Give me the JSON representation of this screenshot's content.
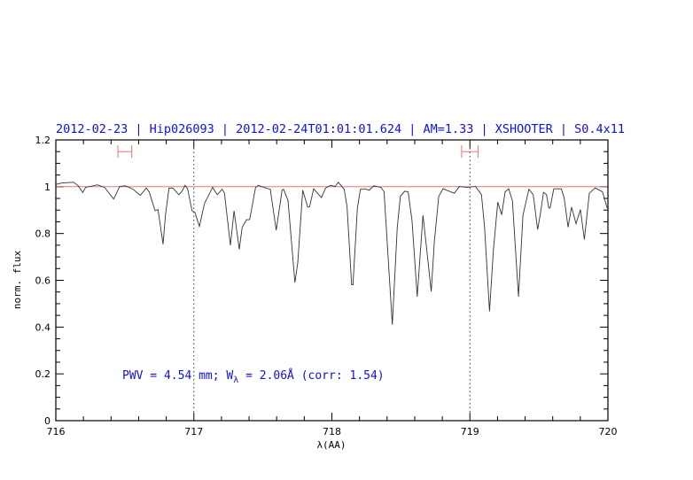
{
  "chart_data": {
    "type": "line",
    "title": "2012-02-23 | Hip026093 | 2012-02-24T01:01:01.624 | AM=1.33 | XSHOOTER | S0.4x11",
    "xlabel": "λ(AA)",
    "ylabel": "norm. flux",
    "xlim": [
      716,
      720
    ],
    "ylim": [
      0,
      1.2
    ],
    "xticks": [
      "716",
      "717",
      "718",
      "719",
      "720"
    ],
    "yticks": [
      "0",
      "0.2",
      "0.4",
      "0.6",
      "0.8",
      "1",
      "1.2"
    ],
    "x_minor_step": 0.2,
    "y_minor_step": 0.05,
    "reference_line": 1.0,
    "dotted_vlines": [
      717,
      719
    ],
    "error_bars": [
      {
        "x_from": 716.45,
        "x_to": 716.55,
        "y": 1.15
      },
      {
        "x_from": 718.94,
        "x_to": 719.06,
        "y": 1.15
      }
    ],
    "annotation": {
      "prefix": "PWV = 4.54 mm; W",
      "sub": "λ",
      "suffix": " = 2.06Å (corr: 1.54)"
    },
    "colors": {
      "spectrum": "#333333",
      "reference": "#e06060",
      "errorbar": "#f07070",
      "text": "#1010e0"
    },
    "series": [
      {
        "name": "spectrum",
        "x": [
          716.002,
          716.045,
          716.13,
          716.162,
          716.195,
          716.216,
          716.302,
          716.353,
          716.419,
          716.462,
          716.505,
          716.559,
          716.612,
          716.655,
          716.676,
          716.719,
          716.74,
          716.777,
          716.794,
          716.82,
          716.848,
          716.891,
          716.912,
          716.937,
          716.955,
          716.987,
          717.008,
          717.04,
          717.077,
          717.093,
          717.136,
          717.169,
          717.205,
          717.222,
          717.265,
          717.291,
          717.329,
          717.35,
          717.382,
          717.404,
          717.447,
          717.468,
          717.522,
          717.554,
          717.597,
          717.639,
          717.65,
          717.682,
          717.732,
          717.753,
          717.789,
          717.825,
          717.838,
          717.868,
          717.924,
          717.954,
          717.992,
          718.024,
          718.046,
          718.089,
          718.11,
          718.143,
          718.153,
          718.185,
          718.207,
          718.249,
          718.271,
          718.303,
          718.356,
          718.378,
          718.438,
          718.474,
          718.496,
          718.528,
          718.553,
          718.581,
          718.618,
          718.66,
          718.688,
          718.72,
          718.742,
          718.774,
          718.806,
          718.887,
          718.923,
          718.977,
          719.041,
          719.084,
          719.106,
          719.142,
          719.17,
          719.202,
          719.23,
          719.255,
          719.281,
          719.308,
          719.352,
          719.384,
          719.427,
          719.459,
          719.491,
          719.512,
          719.533,
          719.555,
          719.572,
          719.581,
          719.608,
          719.662,
          719.683,
          719.711,
          719.737,
          719.769,
          719.801,
          719.829,
          719.865,
          719.908,
          719.961,
          719.994
        ],
        "y": [
          1.01,
          1.016,
          1.019,
          1.004,
          0.975,
          0.997,
          1.008,
          0.997,
          0.947,
          1.001,
          1.004,
          0.989,
          0.963,
          0.994,
          0.978,
          0.897,
          0.903,
          0.754,
          0.878,
          0.994,
          0.994,
          0.966,
          0.978,
          1.006,
          0.991,
          0.897,
          0.89,
          0.83,
          0.928,
          0.947,
          0.997,
          0.966,
          0.989,
          0.972,
          0.749,
          0.897,
          0.732,
          0.827,
          0.859,
          0.859,
          0.997,
          1.006,
          0.994,
          0.989,
          0.814,
          0.985,
          0.989,
          0.941,
          0.59,
          0.675,
          0.985,
          0.913,
          0.913,
          0.991,
          0.953,
          0.994,
          1.006,
          1.001,
          1.019,
          0.989,
          0.916,
          0.581,
          0.581,
          0.909,
          0.989,
          0.989,
          0.985,
          1.004,
          0.997,
          0.978,
          0.41,
          0.827,
          0.959,
          0.981,
          0.978,
          0.852,
          0.53,
          0.878,
          0.726,
          0.552,
          0.764,
          0.959,
          0.991,
          0.972,
          1.001,
          0.997,
          1.001,
          0.966,
          0.827,
          0.467,
          0.726,
          0.934,
          0.88,
          0.978,
          0.991,
          0.941,
          0.53,
          0.878,
          0.989,
          0.966,
          0.817,
          0.89,
          0.976,
          0.966,
          0.909,
          0.909,
          0.991,
          0.991,
          0.953,
          0.827,
          0.913,
          0.842,
          0.903,
          0.774,
          0.972,
          0.995,
          0.978,
          0.909
        ]
      }
    ]
  }
}
